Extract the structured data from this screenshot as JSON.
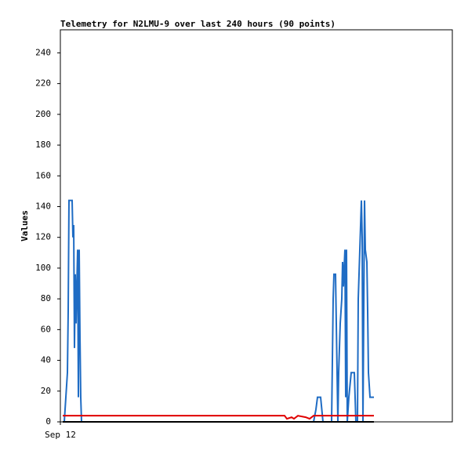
{
  "chart_data": {
    "type": "line",
    "title": "Telemetry for N2LMU-9 over last 240 hours (90 points)",
    "y_label": "Values",
    "xlim": [
      0,
      300
    ],
    "xticks": [
      {
        "value": 0,
        "label": "Sep 12"
      }
    ],
    "ylim": [
      0,
      255
    ],
    "yticks": [
      0,
      20,
      40,
      60,
      80,
      100,
      120,
      140,
      160,
      180,
      200,
      220,
      240
    ],
    "grid": false,
    "series": [
      {
        "color": "#1f6cc4",
        "x": [
          3,
          4.2,
          5.4,
          6,
          6.6,
          7.8,
          9,
          9.6,
          10.2,
          10.8,
          11.4,
          12,
          13.2,
          13.8,
          14.4,
          15,
          15.6,
          16.2,
          193.8,
          195.6,
          196.8,
          199.2,
          201,
          207.6,
          208.8,
          209.4,
          210.6,
          211.2,
          212.4,
          213,
          214.2,
          215.4,
          216,
          216.6,
          217.8,
          218.4,
          219,
          219.6,
          220.8,
          222.6,
          225,
          226.2,
          227.4,
          228,
          229.2,
          230.4,
          231,
          231.6,
          232.8,
          233.4,
          234.6,
          235.2,
          235.8,
          237,
          240
        ],
        "values": [
          0,
          16,
          32,
          72,
          144,
          144,
          144,
          120,
          128,
          48,
          96,
          64,
          112,
          16,
          112,
          56,
          16,
          0,
          0,
          8,
          16,
          16,
          0,
          0,
          80,
          96,
          96,
          64,
          0,
          32,
          64,
          80,
          104,
          88,
          112,
          16,
          112,
          0,
          16,
          32,
          32,
          0,
          0,
          80,
          112,
          144,
          120,
          0,
          144,
          112,
          104,
          72,
          32,
          16,
          16
        ]
      },
      {
        "color": "#e00000",
        "x": [
          1.8,
          171.6,
          173.4,
          177,
          178.8,
          181.8,
          187.8,
          190.8,
          193.8,
          240
        ],
        "values": [
          4,
          4,
          2,
          3,
          2,
          4,
          3,
          2,
          4,
          4
        ]
      },
      {
        "color": "#000000",
        "x": [
          1.8,
          240
        ],
        "values": [
          0,
          0
        ]
      }
    ]
  }
}
